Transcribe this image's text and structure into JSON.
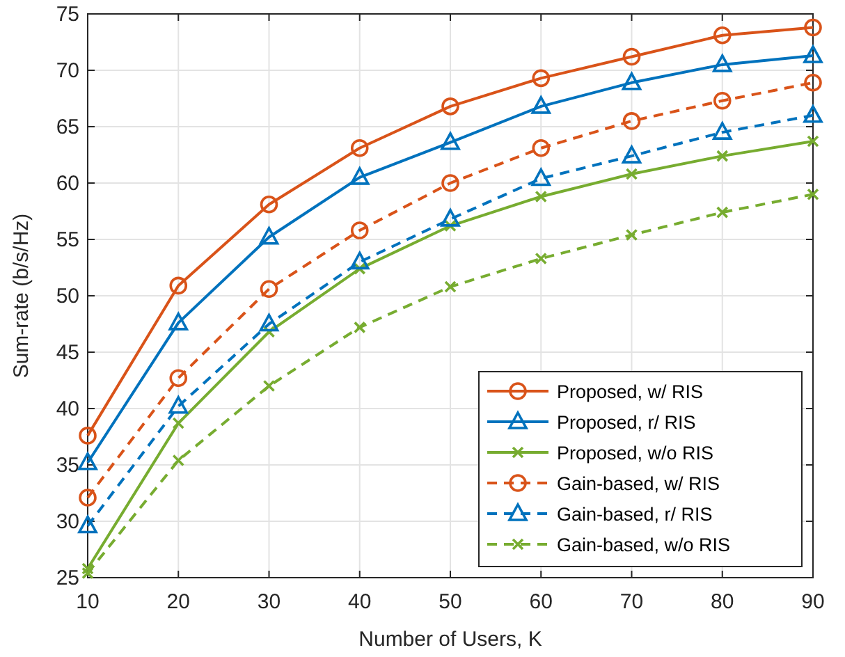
{
  "chart_data": {
    "type": "line",
    "xlabel": "Number of Users, K",
    "ylabel": "Sum-rate (b/s/Hz)",
    "x": [
      10,
      20,
      30,
      40,
      50,
      60,
      70,
      80,
      90
    ],
    "xlim": [
      10,
      90
    ],
    "xticks": [
      10,
      20,
      30,
      40,
      50,
      60,
      70,
      80,
      90
    ],
    "ylim": [
      25,
      75
    ],
    "yticks": [
      25,
      30,
      35,
      40,
      45,
      50,
      55,
      60,
      65,
      70,
      75
    ],
    "grid": true,
    "legend": "bottom right",
    "series": [
      {
        "name": "Proposed, w/ RIS",
        "color": "#d95319",
        "marker": "circle",
        "line_style": "solid",
        "values": [
          37.6,
          50.9,
          58.1,
          63.1,
          66.8,
          69.3,
          71.2,
          73.1,
          73.8
        ]
      },
      {
        "name": "Proposed, r/ RIS",
        "color": "#0072bd",
        "marker": "triangle",
        "line_style": "solid",
        "values": [
          35.2,
          47.6,
          55.2,
          60.5,
          63.6,
          66.8,
          68.9,
          70.5,
          71.3
        ]
      },
      {
        "name": "Proposed, w/o RIS",
        "color": "#77ac30",
        "marker": "cross",
        "line_style": "solid",
        "values": [
          25.8,
          38.7,
          46.8,
          52.4,
          56.2,
          58.8,
          60.8,
          62.4,
          63.7
        ]
      },
      {
        "name": "Gain-based, w/ RIS",
        "color": "#d95319",
        "marker": "circle",
        "line_style": "dashed",
        "values": [
          32.1,
          42.7,
          50.6,
          55.8,
          60.0,
          63.1,
          65.5,
          67.3,
          68.9
        ]
      },
      {
        "name": "Gain-based, r/ RIS",
        "color": "#0072bd",
        "marker": "triangle",
        "line_style": "dashed",
        "values": [
          29.6,
          40.2,
          47.5,
          53.0,
          56.8,
          60.4,
          62.4,
          64.5,
          66.0
        ]
      },
      {
        "name": "Gain-based, w/o RIS",
        "color": "#77ac30",
        "marker": "cross",
        "line_style": "dashed",
        "values": [
          25.4,
          35.4,
          42.0,
          47.2,
          50.8,
          53.3,
          55.4,
          57.4,
          59.0
        ]
      }
    ]
  }
}
